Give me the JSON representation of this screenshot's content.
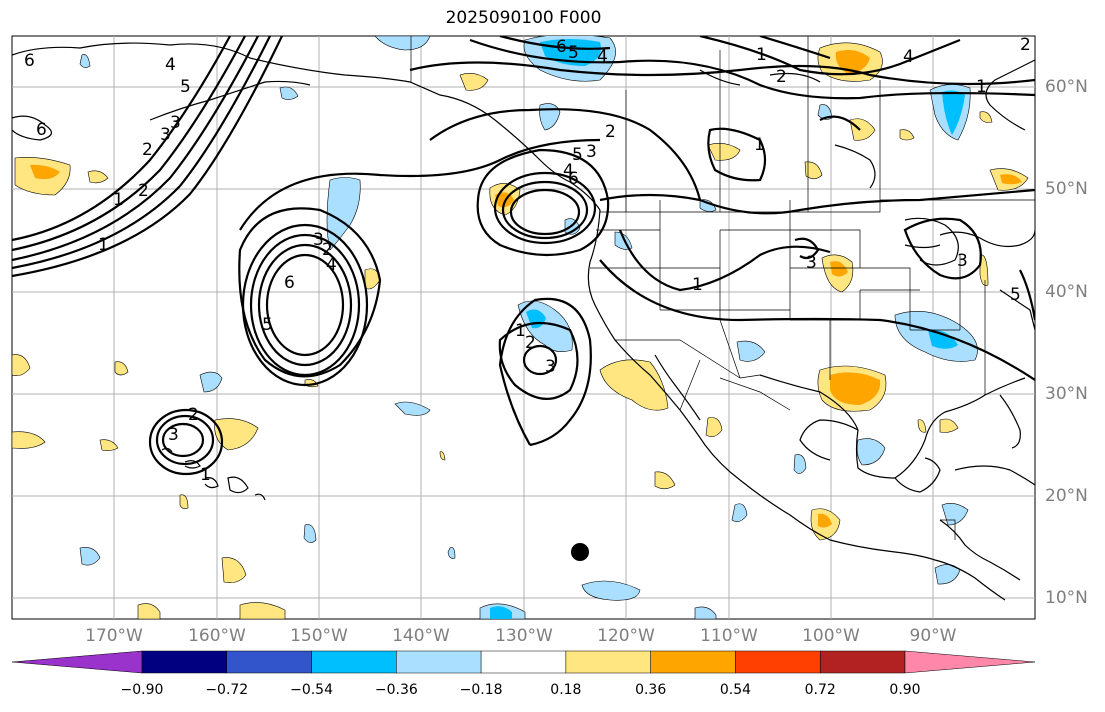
{
  "title": "2025090100 F000",
  "lat_labels": [
    "60°N",
    "50°N",
    "40°N",
    "30°N",
    "20°N",
    "10°N"
  ],
  "lon_labels": [
    "170°W",
    "160°W",
    "150°W",
    "140°W",
    "130°W",
    "120°W",
    "110°W",
    "100°W",
    "90°W"
  ],
  "contour_labels": [
    "1",
    "2",
    "3",
    "4",
    "5",
    "6",
    "1",
    "2",
    "3",
    "4",
    "5",
    "6",
    "1",
    "2",
    "3",
    "4",
    "5",
    "6",
    "1",
    "2",
    "3",
    "1",
    "2",
    "3",
    "4",
    "5",
    "6",
    "1",
    "2",
    "3",
    "1",
    "2",
    "3",
    "4",
    "5",
    "6",
    "1",
    "2",
    "3",
    "1",
    "2",
    "3",
    "1",
    "3",
    "3"
  ],
  "colorbar": {
    "ticks": [
      "−0.90",
      "−0.72",
      "−0.54",
      "−0.36",
      "−0.18",
      "0.18",
      "0.36",
      "0.54",
      "0.72",
      "0.90"
    ],
    "colors": [
      "#9933cc",
      "#000080",
      "#3355cc",
      "#00bfff",
      "#aadfff",
      "#ffffff",
      "#ffe680",
      "#ffa500",
      "#ff4000",
      "#b22222",
      "#ff88aa"
    ]
  }
}
